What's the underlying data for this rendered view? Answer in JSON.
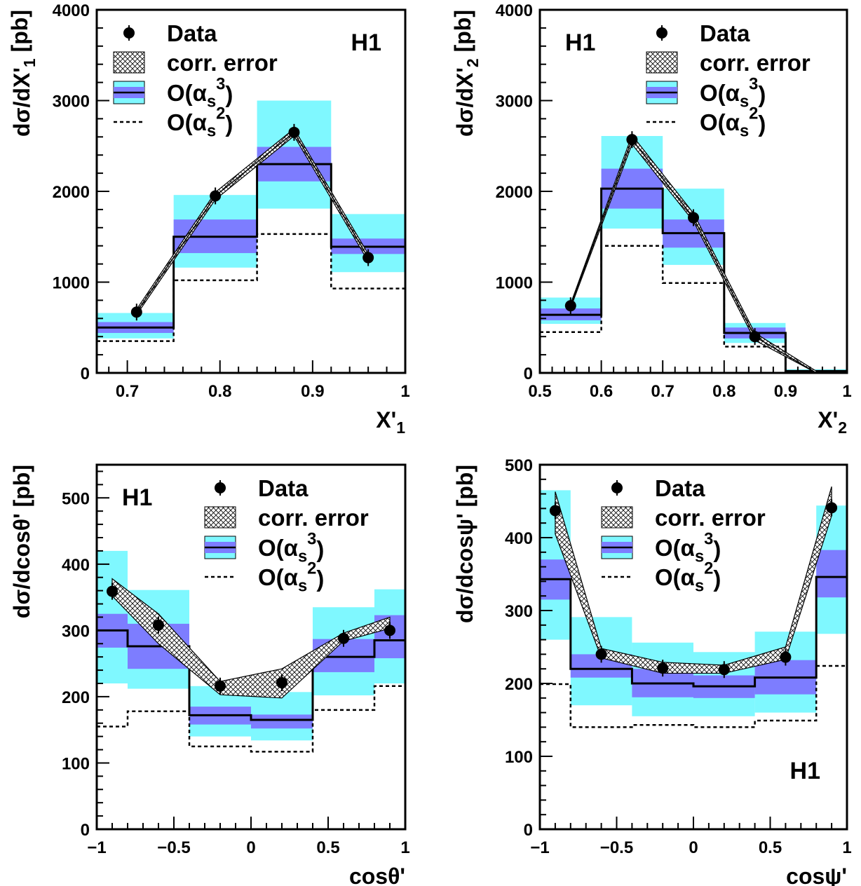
{
  "experiment_label": "H1",
  "legend": {
    "data": "Data",
    "corr_error": "corr. error",
    "nlo": "O(α_s^3)",
    "lo": "O(α_s^2)"
  },
  "colors": {
    "inner_band": "#7d7dff",
    "outer_band": "#7ff8ff",
    "line": "#000000"
  },
  "chart_data": [
    {
      "type": "line",
      "panel": "top-left",
      "xlabel": "X'_1",
      "ylabel": "dσ/dX'_1 [pb]",
      "xlim": [
        0.667,
        1.0
      ],
      "ylim": [
        0,
        4000
      ],
      "xticks": [
        "0.7",
        "0.8",
        "0.9",
        "1"
      ],
      "yticks": [
        "0",
        "1000",
        "2000",
        "3000",
        "4000"
      ],
      "legend_position": "top-left",
      "h1_position": "top-right",
      "bins": [
        0.667,
        0.75,
        0.84,
        0.92,
        1.0
      ],
      "nlo": [
        500,
        1500,
        2300,
        1390
      ],
      "nlo_inner_lo": [
        440,
        1320,
        2110,
        1310
      ],
      "nlo_inner_hi": [
        560,
        1690,
        2490,
        1480
      ],
      "nlo_outer_lo": [
        380,
        1160,
        1810,
        1110
      ],
      "nlo_outer_hi": [
        660,
        1960,
        3000,
        1750
      ],
      "lo": [
        350,
        1020,
        1530,
        930
      ],
      "data_x": [
        0.71,
        0.795,
        0.88,
        0.96
      ],
      "data_y": [
        670,
        1950,
        2650,
        1270
      ],
      "corr_lo": [
        640,
        1910,
        2610,
        1230
      ],
      "corr_hi": [
        700,
        1990,
        2690,
        1310
      ]
    },
    {
      "type": "line",
      "panel": "top-right",
      "xlabel": "X'_2",
      "ylabel": "dσ/dX'_2 [pb]",
      "xlim": [
        0.5,
        1.0
      ],
      "ylim": [
        0,
        4000
      ],
      "xticks": [
        "0.5",
        "0.6",
        "0.7",
        "0.8",
        "0.9",
        "1"
      ],
      "yticks": [
        "0",
        "1000",
        "2000",
        "3000",
        "4000"
      ],
      "legend_position": "top-right",
      "h1_position": "top-left",
      "bins": [
        0.5,
        0.6,
        0.7,
        0.8,
        0.9,
        1.0
      ],
      "nlo": [
        640,
        2030,
        1540,
        440,
        20
      ],
      "nlo_inner_lo": [
        580,
        1810,
        1380,
        380,
        10
      ],
      "nlo_inner_hi": [
        710,
        2250,
        1690,
        500,
        30
      ],
      "nlo_outer_lo": [
        540,
        1590,
        1190,
        330,
        0
      ],
      "nlo_outer_hi": [
        830,
        2610,
        2030,
        550,
        40
      ],
      "lo": [
        450,
        1400,
        990,
        290,
        10
      ],
      "data_x": [
        0.55,
        0.65,
        0.75,
        0.85,
        0.95
      ],
      "data_y": [
        740,
        2570,
        1710,
        400,
        0
      ],
      "corr_lo": [
        715,
        2520,
        1670,
        360,
        0
      ],
      "corr_hi": [
        760,
        2620,
        1760,
        440,
        20
      ]
    },
    {
      "type": "line",
      "panel": "bottom-left",
      "xlabel": "cosθ'",
      "ylabel": "dσ/dcosθ' [pb]",
      "xlim": [
        -1.0,
        1.0
      ],
      "ylim": [
        0,
        550
      ],
      "xticks": [
        "−1",
        "−0.5",
        "0",
        "0.5",
        "1"
      ],
      "yticks": [
        "0",
        "100",
        "200",
        "300",
        "400",
        "500"
      ],
      "legend_position": "top-right",
      "h1_position": "top-left",
      "bins": [
        -1.0,
        -0.8,
        -0.4,
        0.0,
        0.4,
        0.8,
        1.0
      ],
      "nlo": [
        300,
        276,
        172,
        165,
        260,
        285
      ],
      "nlo_inner_lo": [
        274,
        242,
        158,
        152,
        237,
        258
      ],
      "nlo_inner_hi": [
        325,
        310,
        185,
        173,
        287,
        323
      ],
      "nlo_outer_lo": [
        220,
        212,
        140,
        134,
        202,
        220
      ],
      "nlo_outer_hi": [
        420,
        361,
        216,
        207,
        335,
        362
      ],
      "lo": [
        155,
        178,
        125,
        117,
        180,
        216
      ],
      "data_x": [
        -0.9,
        -0.6,
        -0.2,
        0.2,
        0.6,
        0.9
      ],
      "data_y": [
        359,
        308,
        216,
        221,
        288,
        300
      ],
      "corr_lo": [
        352,
        280,
        203,
        198,
        284,
        303
      ],
      "corr_hi": [
        378,
        325,
        223,
        242,
        296,
        320
      ]
    },
    {
      "type": "line",
      "panel": "bottom-right",
      "xlabel": "cosψ'",
      "ylabel": "dσ/dcosψ' [pb]",
      "xlim": [
        -1.0,
        1.0
      ],
      "ylim": [
        0,
        500
      ],
      "xticks": [
        "−1",
        "−0.5",
        "0",
        "0.5",
        "1"
      ],
      "yticks": [
        "0",
        "100",
        "200",
        "300",
        "400",
        "500"
      ],
      "legend_position": "top-right",
      "h1_position": "bottom-right",
      "bins": [
        -1.0,
        -0.8,
        -0.4,
        0.0,
        0.4,
        0.8,
        1.0
      ],
      "nlo": [
        343,
        220,
        200,
        196,
        208,
        346
      ],
      "nlo_inner_lo": [
        315,
        208,
        181,
        180,
        185,
        318
      ],
      "nlo_inner_hi": [
        370,
        240,
        220,
        211,
        232,
        383
      ],
      "nlo_outer_lo": [
        260,
        170,
        155,
        155,
        160,
        268
      ],
      "nlo_outer_hi": [
        465,
        291,
        256,
        243,
        271,
        444
      ],
      "lo": [
        199,
        140,
        143,
        140,
        149,
        224
      ],
      "data_x": [
        -0.9,
        -0.6,
        -0.2,
        0.2,
        0.6,
        0.9
      ],
      "data_y": [
        437,
        240,
        221,
        219,
        236,
        441
      ],
      "corr_lo": [
        405,
        235,
        214,
        214,
        233,
        430
      ],
      "corr_hi": [
        463,
        248,
        229,
        225,
        250,
        470
      ]
    }
  ]
}
